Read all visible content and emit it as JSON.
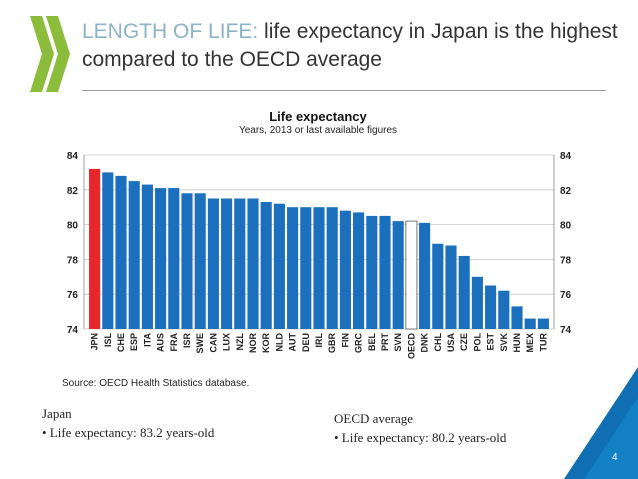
{
  "slide": {
    "title_prefix": "LENGTH OF LIFE:",
    "title_rest": " life expectancy in Japan is the highest compared to the OECD average",
    "page_number": "4",
    "colors": {
      "accent": "#8cb3c6",
      "logo_green": "#8bbc3c",
      "corner_blue": "#0f6fb2"
    }
  },
  "chart_data": {
    "type": "bar",
    "title": "Life expectancy",
    "subtitle": "Years, 2013 or last available figures",
    "categories": [
      "JPN",
      "ISL",
      "CHE",
      "ESP",
      "ITA",
      "AUS",
      "FRA",
      "ISR",
      "SWE",
      "CAN",
      "LUX",
      "NZL",
      "NOR",
      "KOR",
      "NLD",
      "AUT",
      "DEU",
      "IRL",
      "GBR",
      "FIN",
      "GRC",
      "BEL",
      "PRT",
      "SVN",
      "OECD",
      "DNK",
      "CHL",
      "USA",
      "CZE",
      "POL",
      "EST",
      "SVK",
      "HUN",
      "MEX",
      "TUR"
    ],
    "values": [
      83.2,
      83.0,
      82.8,
      82.5,
      82.3,
      82.1,
      82.1,
      81.8,
      81.8,
      81.5,
      81.5,
      81.5,
      81.5,
      81.3,
      81.2,
      81.0,
      81.0,
      81.0,
      81.0,
      80.8,
      80.7,
      80.5,
      80.5,
      80.2,
      80.2,
      80.1,
      78.9,
      78.8,
      78.2,
      77.0,
      76.5,
      76.2,
      75.3,
      74.6,
      74.6
    ],
    "highlight": {
      "JPN": "#e8262c",
      "OECD": "#ffffff"
    },
    "bar_color": "#1b6fbd",
    "ylim": [
      74,
      84
    ],
    "yticks": [
      74,
      76,
      78,
      80,
      82,
      84
    ],
    "grid": true,
    "source": "Source: OECD Health Statistics database."
  },
  "notes": {
    "japan": {
      "heading": "Japan",
      "bullet": "• Life expectancy: 83.2 years-old"
    },
    "oecd": {
      "heading": "OECD average",
      "bullet": "• Life expectancy: 80.2 years-old"
    }
  }
}
